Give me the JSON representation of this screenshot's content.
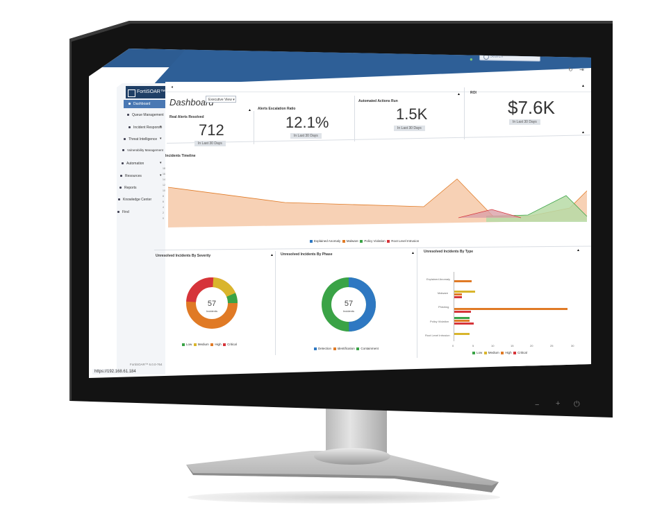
{
  "app": {
    "brand": "FortiSOAR™",
    "page_title": "Dashboard",
    "view_select": "Executive View",
    "search_placeholder": "Search",
    "url": "https://192.168.61.184",
    "footer": "FortiSOAR™ 6.0.0-764"
  },
  "sidebar": {
    "items": [
      {
        "label": "Dashboard",
        "active": true
      },
      {
        "label": "Queue Management"
      },
      {
        "label": "Incident Response"
      },
      {
        "label": "Threat Intelligence"
      },
      {
        "label": "Vulnerability Management"
      },
      {
        "label": "Automation"
      },
      {
        "label": "Resources"
      },
      {
        "label": "Reports"
      },
      {
        "label": "Knowledge Center"
      },
      {
        "label": "Find"
      }
    ]
  },
  "metrics": [
    {
      "title": "Real Alerts Resolved",
      "value": "712",
      "period": "In Last 30 Days"
    },
    {
      "title": "Alerts Escalation Ratio",
      "value": "12.1%",
      "period": "In Last 30 Days"
    },
    {
      "title": "Automated Actions Run",
      "value": "1.5K",
      "period": "In Last 30 Days"
    },
    {
      "title": "ROI",
      "value": "$7.6K",
      "period": "In Last 30 Days"
    }
  ],
  "timeline": {
    "title": "Incidents Timeline",
    "legend": [
      "Explained Anomaly",
      "Malware",
      "Policy Violation",
      "Root Level Intrusion"
    ]
  },
  "severity": {
    "title": "Unresolved Incidents By Severity",
    "center_value": "57",
    "center_label": "Incidents",
    "legend": [
      "Low",
      "Medium",
      "High",
      "Critical"
    ]
  },
  "phase": {
    "title": "Unresolved Incidents By Phase",
    "center_value": "57",
    "center_label": "Incidents",
    "legend": [
      "Detection",
      "Identification",
      "Containment"
    ]
  },
  "type": {
    "title": "Unresolved Incidents By Type",
    "categories": [
      "Explained Anomaly",
      "Malware",
      "Phishing",
      "Policy Violation",
      "Root Level Intrusion"
    ],
    "x_ticks": [
      "0",
      "5",
      "10",
      "15",
      "20",
      "25",
      "30"
    ],
    "legend": [
      "Low",
      "Medium",
      "High",
      "Critical"
    ]
  },
  "colors": {
    "topbar": "#2d5c92",
    "low": "#3aa346",
    "medium": "#d9b52c",
    "high": "#e07a25",
    "critical": "#d6343a",
    "blue": "#2e78c2"
  }
}
